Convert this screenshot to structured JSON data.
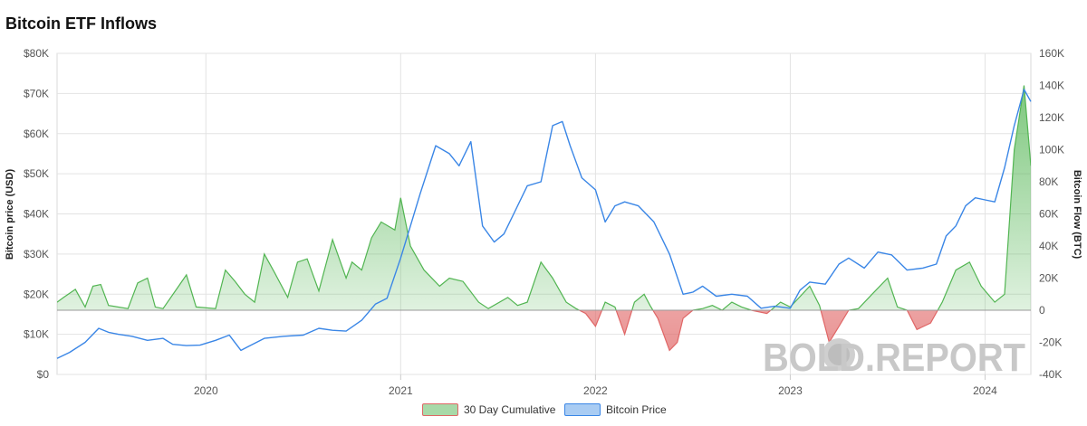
{
  "title": "Bitcoin ETF Inflows",
  "chart_data": {
    "type": "line",
    "title": "Bitcoin ETF Inflows",
    "x_ticks": [
      "2020",
      "2021",
      "2022",
      "2023",
      "2024"
    ],
    "x_range": [
      2019.236,
      2024.235
    ],
    "y_left": {
      "label": "Bitcoin price (USD)",
      "range": [
        0,
        80000
      ],
      "ticks": [
        0,
        10000,
        20000,
        30000,
        40000,
        50000,
        60000,
        70000,
        80000
      ],
      "tick_labels": [
        "$0",
        "$10K",
        "$20K",
        "$30K",
        "$40K",
        "$50K",
        "$60K",
        "$70K",
        "$80K"
      ]
    },
    "y_right": {
      "label": "Bitcoin Flow (BTC)",
      "range": [
        -40000,
        160000
      ],
      "ticks": [
        -40000,
        -20000,
        0,
        20000,
        40000,
        60000,
        80000,
        100000,
        120000,
        140000,
        160000
      ],
      "tick_labels": [
        "-40K",
        "-20K",
        "0",
        "20K",
        "40K",
        "60K",
        "80K",
        "100K",
        "120K",
        "140K",
        "160K"
      ]
    },
    "grid": true,
    "legend_position": "bottom",
    "series": [
      {
        "name": "30 Day Cumulative",
        "type": "area",
        "axis": "right",
        "color_positive": "#52b552",
        "color_negative": "#e06666",
        "x": [
          2019.236,
          2019.27,
          2019.33,
          2019.38,
          2019.42,
          2019.46,
          2019.5,
          2019.6,
          2019.65,
          2019.7,
          2019.74,
          2019.78,
          2019.86,
          2019.9,
          2019.95,
          2020.05,
          2020.1,
          2020.15,
          2020.2,
          2020.25,
          2020.3,
          2020.35,
          2020.42,
          2020.47,
          2020.52,
          2020.58,
          2020.65,
          2020.72,
          2020.75,
          2020.8,
          2020.85,
          2020.9,
          2020.97,
          2021.0,
          2021.05,
          2021.12,
          2021.2,
          2021.25,
          2021.32,
          2021.4,
          2021.45,
          2021.55,
          2021.6,
          2021.65,
          2021.72,
          2021.78,
          2021.85,
          2021.9,
          2021.95,
          2022.0,
          2022.05,
          2022.1,
          2022.15,
          2022.2,
          2022.25,
          2022.28,
          2022.32,
          2022.38,
          2022.42,
          2022.45,
          2022.5,
          2022.55,
          2022.6,
          2022.65,
          2022.7,
          2022.75,
          2022.8,
          2022.88,
          2022.95,
          2023.0,
          2023.1,
          2023.15,
          2023.2,
          2023.25,
          2023.3,
          2023.35,
          2023.42,
          2023.5,
          2023.55,
          2023.6,
          2023.65,
          2023.72,
          2023.78,
          2023.85,
          2023.92,
          2023.98,
          2024.05,
          2024.1,
          2024.15,
          2024.2,
          2024.235
        ],
        "values": [
          5000,
          8000,
          13000,
          2000,
          15000,
          16000,
          3000,
          1000,
          17000,
          20000,
          2000,
          1000,
          15000,
          22000,
          2000,
          1000,
          25000,
          18000,
          10000,
          5000,
          35000,
          24000,
          8000,
          30000,
          32000,
          12000,
          44000,
          20000,
          30000,
          25000,
          45000,
          55000,
          50000,
          70000,
          40000,
          25000,
          15000,
          20000,
          18000,
          5000,
          1000,
          8000,
          3000,
          5000,
          30000,
          20000,
          5000,
          1000,
          -2000,
          -10000,
          5000,
          2000,
          -15000,
          5000,
          10000,
          3000,
          -5000,
          -25000,
          -20000,
          -5000,
          0,
          1000,
          3000,
          0,
          5000,
          2000,
          0,
          -2000,
          5000,
          2000,
          15000,
          3000,
          -20000,
          -10000,
          0,
          1000,
          10000,
          20000,
          2000,
          0,
          -12000,
          -8000,
          5000,
          25000,
          30000,
          15000,
          5000,
          10000,
          100000,
          140000,
          90000
        ]
      },
      {
        "name": "Bitcoin Price",
        "type": "line",
        "axis": "left",
        "color": "#3a86e6",
        "x": [
          2019.236,
          2019.3,
          2019.38,
          2019.45,
          2019.5,
          2019.55,
          2019.62,
          2019.7,
          2019.78,
          2019.83,
          2019.9,
          2019.97,
          2020.05,
          2020.12,
          2020.18,
          2020.22,
          2020.3,
          2020.4,
          2020.5,
          2020.58,
          2020.65,
          2020.72,
          2020.8,
          2020.87,
          2020.93,
          2021.0,
          2021.05,
          2021.1,
          2021.18,
          2021.25,
          2021.3,
          2021.36,
          2021.42,
          2021.48,
          2021.53,
          2021.58,
          2021.65,
          2021.72,
          2021.78,
          2021.83,
          2021.87,
          2021.93,
          2022.0,
          2022.05,
          2022.1,
          2022.15,
          2022.22,
          2022.3,
          2022.38,
          2022.45,
          2022.5,
          2022.55,
          2022.62,
          2022.7,
          2022.78,
          2022.85,
          2022.92,
          2023.0,
          2023.05,
          2023.1,
          2023.18,
          2023.25,
          2023.3,
          2023.38,
          2023.45,
          2023.52,
          2023.6,
          2023.68,
          2023.75,
          2023.8,
          2023.85,
          2023.9,
          2023.95,
          2024.0,
          2024.05,
          2024.1,
          2024.15,
          2024.2,
          2024.235
        ],
        "values": [
          4000,
          5500,
          8000,
          11500,
          10500,
          10000,
          9500,
          8500,
          9000,
          7500,
          7200,
          7300,
          8500,
          9800,
          6000,
          7000,
          9000,
          9500,
          9800,
          11500,
          11000,
          10800,
          13500,
          17500,
          19000,
          29000,
          37000,
          45000,
          57000,
          55000,
          52000,
          58000,
          37000,
          33000,
          35000,
          40000,
          47000,
          48000,
          62000,
          63000,
          57000,
          49000,
          46000,
          38000,
          42000,
          43000,
          42000,
          38000,
          30000,
          20000,
          20500,
          22000,
          19500,
          20000,
          19500,
          16500,
          17000,
          16500,
          21000,
          23000,
          22500,
          27500,
          29000,
          26500,
          30500,
          29800,
          26000,
          26500,
          27500,
          34500,
          37000,
          42000,
          44000,
          43500,
          43000,
          51500,
          62000,
          71000,
          68000
        ]
      }
    ],
    "watermark": "BOLD.REPORT"
  },
  "legend": {
    "item1": "30 Day Cumulative",
    "item2": "Bitcoin Price"
  }
}
